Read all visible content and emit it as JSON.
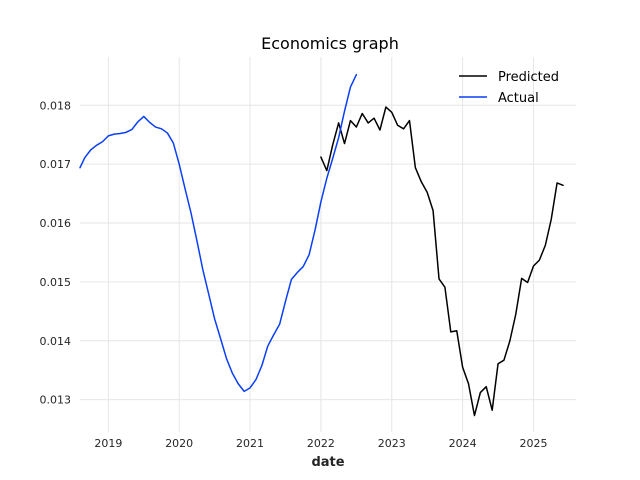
{
  "chart_data": {
    "type": "line",
    "title": "Economics graph",
    "xlabel": "date",
    "ylabel": "",
    "x_ticks": [
      "2019",
      "2020",
      "2021",
      "2022",
      "2023",
      "2024",
      "2025"
    ],
    "y_ticks": [
      "0.013",
      "0.014",
      "0.015",
      "0.016",
      "0.017",
      "0.018"
    ],
    "xlim": [
      2018.6,
      2025.6
    ],
    "ylim": [
      0.01245,
      0.01882
    ],
    "grid": true,
    "legend_position": "top-right",
    "series": [
      {
        "name": "Predicted",
        "color": "#000000",
        "points": [
          [
            2022.0,
            0.01712
          ],
          [
            2022.083,
            0.01689
          ],
          [
            2022.167,
            0.01733
          ],
          [
            2022.25,
            0.0177
          ],
          [
            2022.333,
            0.01735
          ],
          [
            2022.417,
            0.01774
          ],
          [
            2022.5,
            0.01763
          ],
          [
            2022.583,
            0.01786
          ],
          [
            2022.667,
            0.0177
          ],
          [
            2022.75,
            0.01778
          ],
          [
            2022.833,
            0.01758
          ],
          [
            2022.917,
            0.01797
          ],
          [
            2023.0,
            0.01788
          ],
          [
            2023.083,
            0.01766
          ],
          [
            2023.167,
            0.0176
          ],
          [
            2023.25,
            0.01774
          ],
          [
            2023.333,
            0.01694
          ],
          [
            2023.417,
            0.0167
          ],
          [
            2023.5,
            0.01652
          ],
          [
            2023.583,
            0.01621
          ],
          [
            2023.667,
            0.01505
          ],
          [
            2023.75,
            0.01491
          ],
          [
            2023.833,
            0.01415
          ],
          [
            2023.917,
            0.01417
          ],
          [
            2024.0,
            0.01355
          ],
          [
            2024.083,
            0.01327
          ],
          [
            2024.167,
            0.01273
          ],
          [
            2024.25,
            0.01312
          ],
          [
            2024.333,
            0.01322
          ],
          [
            2024.417,
            0.01282
          ],
          [
            2024.5,
            0.01361
          ],
          [
            2024.583,
            0.01367
          ],
          [
            2024.667,
            0.014
          ],
          [
            2024.75,
            0.01445
          ],
          [
            2024.833,
            0.01506
          ],
          [
            2024.917,
            0.01499
          ],
          [
            2025.0,
            0.01527
          ],
          [
            2025.083,
            0.01537
          ],
          [
            2025.167,
            0.01562
          ],
          [
            2025.25,
            0.01606
          ],
          [
            2025.333,
            0.01668
          ],
          [
            2025.417,
            0.01664
          ]
        ]
      },
      {
        "name": "Actual",
        "color": "#0a3ff5",
        "points": [
          [
            2018.6,
            0.01694
          ],
          [
            2018.667,
            0.01711
          ],
          [
            2018.75,
            0.01724
          ],
          [
            2018.833,
            0.01732
          ],
          [
            2018.917,
            0.01738
          ],
          [
            2019.0,
            0.01748
          ],
          [
            2019.083,
            0.01751
          ],
          [
            2019.167,
            0.01752
          ],
          [
            2019.25,
            0.01754
          ],
          [
            2019.333,
            0.01759
          ],
          [
            2019.417,
            0.01772
          ],
          [
            2019.5,
            0.01781
          ],
          [
            2019.583,
            0.01771
          ],
          [
            2019.667,
            0.01763
          ],
          [
            2019.75,
            0.0176
          ],
          [
            2019.833,
            0.01753
          ],
          [
            2019.917,
            0.01736
          ],
          [
            2020.0,
            0.017
          ],
          [
            2020.083,
            0.01658
          ],
          [
            2020.167,
            0.01617
          ],
          [
            2020.25,
            0.0157
          ],
          [
            2020.333,
            0.01521
          ],
          [
            2020.417,
            0.01479
          ],
          [
            2020.5,
            0.01437
          ],
          [
            2020.583,
            0.01404
          ],
          [
            2020.667,
            0.0137
          ],
          [
            2020.75,
            0.01345
          ],
          [
            2020.833,
            0.01327
          ],
          [
            2020.917,
            0.01314
          ],
          [
            2021.0,
            0.0132
          ],
          [
            2021.083,
            0.01334
          ],
          [
            2021.167,
            0.01358
          ],
          [
            2021.25,
            0.01391
          ],
          [
            2021.333,
            0.0141
          ],
          [
            2021.417,
            0.01428
          ],
          [
            2021.5,
            0.01467
          ],
          [
            2021.583,
            0.01504
          ],
          [
            2021.667,
            0.01516
          ],
          [
            2021.75,
            0.01526
          ],
          [
            2021.833,
            0.01546
          ],
          [
            2021.917,
            0.01588
          ],
          [
            2022.0,
            0.01636
          ],
          [
            2022.083,
            0.01676
          ],
          [
            2022.167,
            0.0171
          ],
          [
            2022.25,
            0.01745
          ],
          [
            2022.333,
            0.0179
          ],
          [
            2022.417,
            0.01831
          ],
          [
            2022.5,
            0.01852
          ]
        ]
      }
    ]
  }
}
